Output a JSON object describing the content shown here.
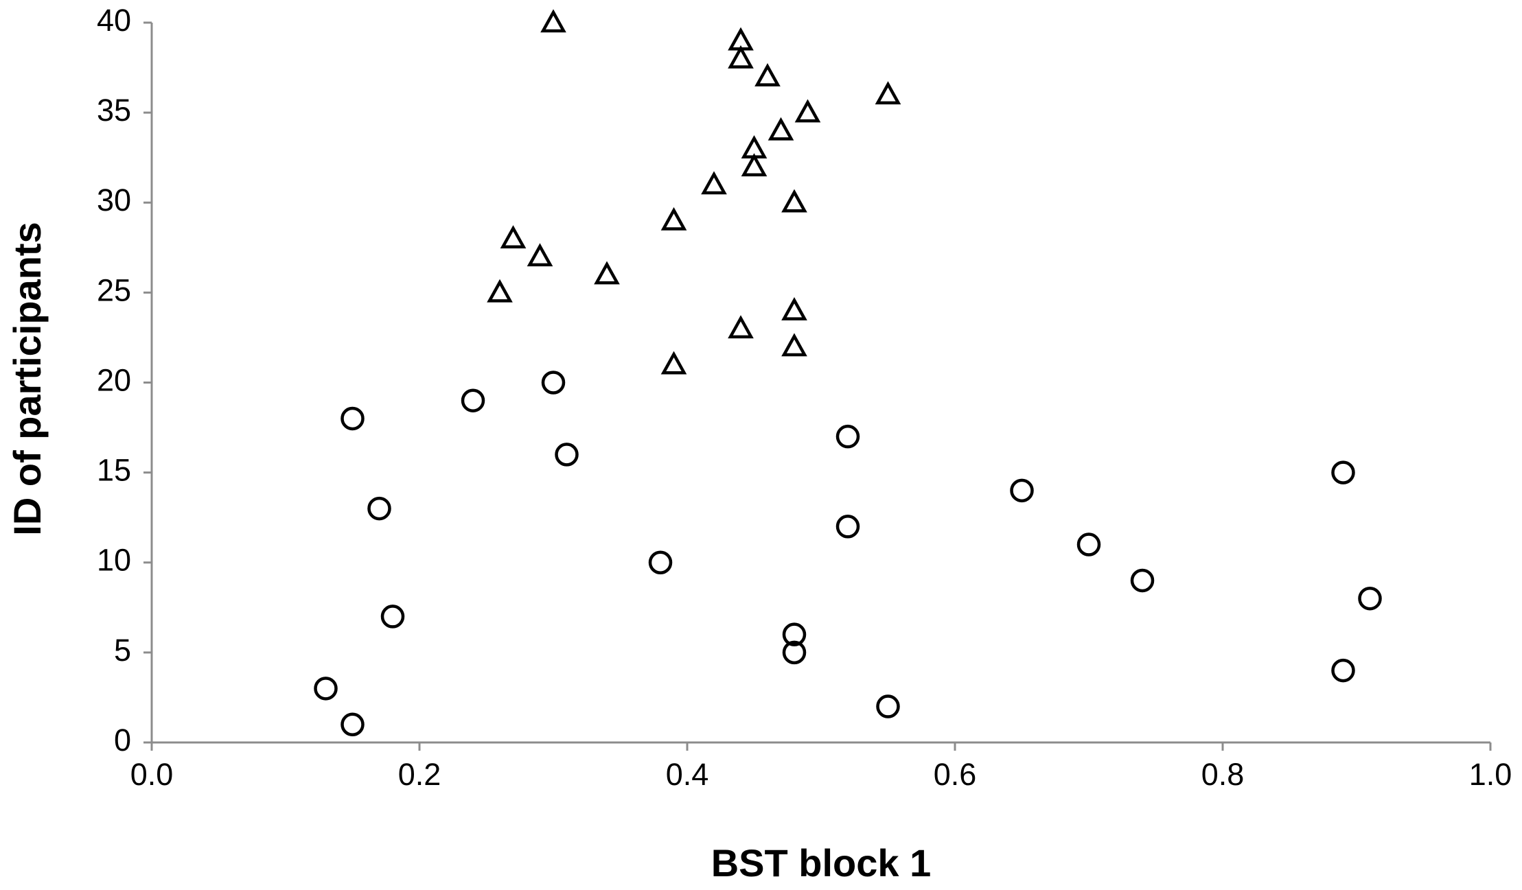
{
  "chart_data": {
    "type": "scatter",
    "x_label": "BST block 1",
    "y_label": "ID of participants",
    "xlim": [
      0,
      1
    ],
    "xticks": [
      {
        "value": 0,
        "label": "0.0"
      },
      0.2,
      0.4,
      0.6,
      0.8,
      {
        "value": 1,
        "label": "1.0"
      }
    ],
    "ylim": [
      0,
      40
    ],
    "yticks": [
      0,
      5,
      10,
      15,
      20,
      25,
      30,
      35,
      40
    ],
    "grid": false,
    "series": [
      {
        "marker": "circle",
        "color": "#000000",
        "x": [
          0.15,
          0.55,
          0.13,
          0.89,
          0.48,
          0.48,
          0.18,
          0.91,
          0.74,
          0.38,
          0.7,
          0.52,
          0.17,
          0.65,
          0.89,
          0.31,
          0.52,
          0.15,
          0.24,
          0.3
        ],
        "y": [
          1,
          2,
          3,
          4,
          5,
          6,
          7,
          8,
          9,
          10,
          11,
          12,
          13,
          14,
          15,
          16,
          17,
          18,
          19,
          20
        ]
      },
      {
        "marker": "triangle",
        "color": "#000000",
        "x": [
          0.39,
          0.48,
          0.44,
          0.48,
          0.26,
          0.34,
          0.29,
          0.27,
          0.39,
          0.48,
          0.42,
          0.45,
          0.45,
          0.47,
          0.49,
          0.55,
          0.46,
          0.44,
          0.44,
          0.3
        ],
        "y": [
          21,
          22,
          23,
          24,
          25,
          26,
          27,
          28,
          29,
          30,
          31,
          32,
          33,
          34,
          35,
          36,
          37,
          38,
          39,
          40
        ]
      }
    ]
  }
}
